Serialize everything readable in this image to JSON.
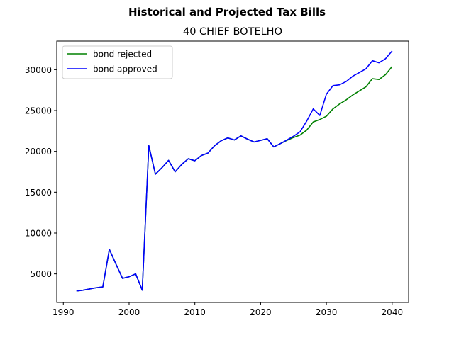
{
  "chart_data": {
    "type": "line",
    "suptitle": "Historical and Projected Tax Bills",
    "title": "40 CHIEF BOTELHO",
    "xlabel": "",
    "ylabel": "",
    "xlim": [
      1989,
      2042.5
    ],
    "ylim": [
      1500,
      33500
    ],
    "xticks": [
      1990,
      2000,
      2010,
      2020,
      2030,
      2040
    ],
    "yticks": [
      5000,
      10000,
      15000,
      20000,
      25000,
      30000
    ],
    "grid": false,
    "legend_position": "top-left",
    "series": [
      {
        "name": "bond rejected",
        "color": "#008000",
        "x": [
          1992,
          1993,
          1994,
          1995,
          1996,
          1997,
          1998,
          1999,
          2000,
          2001,
          2002,
          2003,
          2004,
          2005,
          2006,
          2007,
          2008,
          2009,
          2010,
          2011,
          2012,
          2013,
          2014,
          2015,
          2016,
          2017,
          2018,
          2019,
          2020,
          2021,
          2022,
          2023,
          2024,
          2025,
          2026,
          2027,
          2028,
          2029,
          2030,
          2031,
          2032,
          2033,
          2034,
          2035,
          2036,
          2037,
          2038,
          2039,
          2040
        ],
        "y": [
          2900,
          3000,
          3150,
          3300,
          3400,
          8000,
          6200,
          4450,
          4650,
          5000,
          3000,
          20700,
          17200,
          18000,
          18900,
          17500,
          18400,
          19100,
          18850,
          19500,
          19800,
          20700,
          21300,
          21650,
          21400,
          21900,
          21500,
          21150,
          21350,
          21550,
          20550,
          20950,
          21350,
          21700,
          22000,
          22600,
          23600,
          23900,
          24300,
          25200,
          25800,
          26300,
          26900,
          27400,
          27900,
          28900,
          28800,
          29400,
          30400
        ]
      },
      {
        "name": "bond approved",
        "color": "#0000ff",
        "x": [
          1992,
          1993,
          1994,
          1995,
          1996,
          1997,
          1998,
          1999,
          2000,
          2001,
          2002,
          2003,
          2004,
          2005,
          2006,
          2007,
          2008,
          2009,
          2010,
          2011,
          2012,
          2013,
          2014,
          2015,
          2016,
          2017,
          2018,
          2019,
          2020,
          2021,
          2022,
          2023,
          2024,
          2025,
          2026,
          2027,
          2028,
          2029,
          2030,
          2031,
          2032,
          2033,
          2034,
          2035,
          2036,
          2037,
          2038,
          2039,
          2040
        ],
        "y": [
          2900,
          3000,
          3150,
          3300,
          3400,
          8000,
          6200,
          4450,
          4650,
          5000,
          3000,
          20700,
          17200,
          18000,
          18900,
          17500,
          18400,
          19100,
          18850,
          19500,
          19800,
          20700,
          21300,
          21650,
          21400,
          21900,
          21500,
          21150,
          21350,
          21550,
          20550,
          20950,
          21400,
          21850,
          22400,
          23700,
          25200,
          24400,
          27000,
          28050,
          28150,
          28550,
          29200,
          29650,
          30100,
          31100,
          30850,
          31350,
          32300
        ]
      }
    ]
  }
}
